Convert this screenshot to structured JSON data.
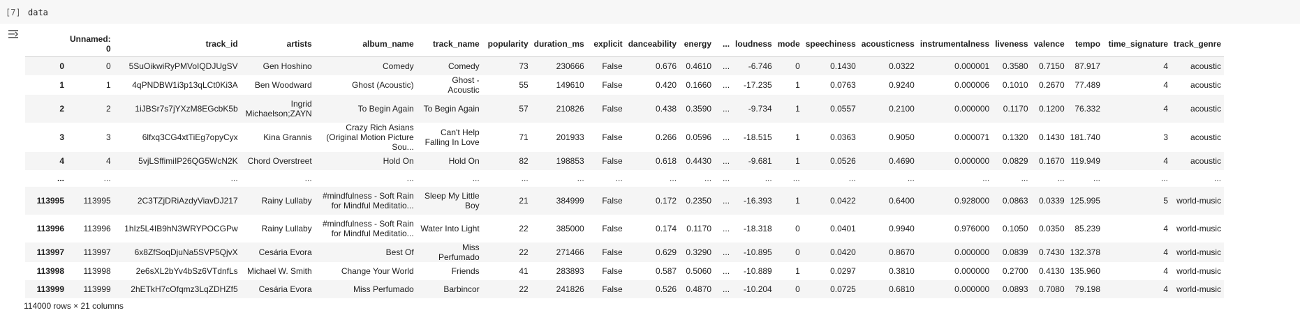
{
  "cell": {
    "execution_count": "[7]",
    "code": "data"
  },
  "table": {
    "columns": [
      "",
      "Unnamed: 0",
      "track_id",
      "artists",
      "album_name",
      "track_name",
      "popularity",
      "duration_ms",
      "explicit",
      "danceability",
      "energy",
      "...",
      "loudness",
      "mode",
      "speechiness",
      "acousticness",
      "instrumentalness",
      "liveness",
      "valence",
      "tempo",
      "time_signature",
      "track_genre"
    ],
    "rows": [
      [
        "0",
        "0",
        "5SuOikwiRyPMVoIQDJUgSV",
        "Gen Hoshino",
        "Comedy",
        "Comedy",
        "73",
        "230666",
        "False",
        "0.676",
        "0.4610",
        "...",
        "-6.746",
        "0",
        "0.1430",
        "0.0322",
        "0.000001",
        "0.3580",
        "0.7150",
        "87.917",
        "4",
        "acoustic"
      ],
      [
        "1",
        "1",
        "4qPNDBW1i3p13qLCt0Ki3A",
        "Ben Woodward",
        "Ghost (Acoustic)",
        "Ghost - Acoustic",
        "55",
        "149610",
        "False",
        "0.420",
        "0.1660",
        "...",
        "-17.235",
        "1",
        "0.0763",
        "0.9240",
        "0.000006",
        "0.1010",
        "0.2670",
        "77.489",
        "4",
        "acoustic"
      ],
      [
        "2",
        "2",
        "1iJBSr7s7jYXzM8EGcbK5b",
        "Ingrid Michaelson;ZAYN",
        "To Begin Again",
        "To Begin Again",
        "57",
        "210826",
        "False",
        "0.438",
        "0.3590",
        "...",
        "-9.734",
        "1",
        "0.0557",
        "0.2100",
        "0.000000",
        "0.1170",
        "0.1200",
        "76.332",
        "4",
        "acoustic"
      ],
      [
        "3",
        "3",
        "6lfxq3CG4xtTiEg7opyCyx",
        "Kina Grannis",
        "Crazy Rich Asians (Original Motion Picture Sou...",
        "Can't Help Falling In Love",
        "71",
        "201933",
        "False",
        "0.266",
        "0.0596",
        "...",
        "-18.515",
        "1",
        "0.0363",
        "0.9050",
        "0.000071",
        "0.1320",
        "0.1430",
        "181.740",
        "3",
        "acoustic"
      ],
      [
        "4",
        "4",
        "5vjLSffimiIP26QG5WcN2K",
        "Chord Overstreet",
        "Hold On",
        "Hold On",
        "82",
        "198853",
        "False",
        "0.618",
        "0.4430",
        "...",
        "-9.681",
        "1",
        "0.0526",
        "0.4690",
        "0.000000",
        "0.0829",
        "0.1670",
        "119.949",
        "4",
        "acoustic"
      ],
      [
        "...",
        "...",
        "...",
        "...",
        "...",
        "...",
        "...",
        "...",
        "...",
        "...",
        "...",
        "...",
        "...",
        "...",
        "...",
        "...",
        "...",
        "...",
        "...",
        "...",
        "...",
        "..."
      ],
      [
        "113995",
        "113995",
        "2C3TZjDRiAzdyViavDJ217",
        "Rainy Lullaby",
        "#mindfulness - Soft Rain for Mindful Meditatio...",
        "Sleep My Little Boy",
        "21",
        "384999",
        "False",
        "0.172",
        "0.2350",
        "...",
        "-16.393",
        "1",
        "0.0422",
        "0.6400",
        "0.928000",
        "0.0863",
        "0.0339",
        "125.995",
        "5",
        "world-music"
      ],
      [
        "113996",
        "113996",
        "1hIz5L4IB9hN3WRYPOCGPw",
        "Rainy Lullaby",
        "#mindfulness - Soft Rain for Mindful Meditatio...",
        "Water Into Light",
        "22",
        "385000",
        "False",
        "0.174",
        "0.1170",
        "...",
        "-18.318",
        "0",
        "0.0401",
        "0.9940",
        "0.976000",
        "0.1050",
        "0.0350",
        "85.239",
        "4",
        "world-music"
      ],
      [
        "113997",
        "113997",
        "6x8ZfSoqDjuNa5SVP5QjvX",
        "Cesária Evora",
        "Best Of",
        "Miss Perfumado",
        "22",
        "271466",
        "False",
        "0.629",
        "0.3290",
        "...",
        "-10.895",
        "0",
        "0.0420",
        "0.8670",
        "0.000000",
        "0.0839",
        "0.7430",
        "132.378",
        "4",
        "world-music"
      ],
      [
        "113998",
        "113998",
        "2e6sXL2bYv4bSz6VTdnfLs",
        "Michael W. Smith",
        "Change Your World",
        "Friends",
        "41",
        "283893",
        "False",
        "0.587",
        "0.5060",
        "...",
        "-10.889",
        "1",
        "0.0297",
        "0.3810",
        "0.000000",
        "0.2700",
        "0.4130",
        "135.960",
        "4",
        "world-music"
      ],
      [
        "113999",
        "113999",
        "2hETkH7cOfqmz3LqZDHZf5",
        "Cesária Evora",
        "Miss Perfumado",
        "Barbincor",
        "22",
        "241826",
        "False",
        "0.526",
        "0.4870",
        "...",
        "-10.204",
        "0",
        "0.0725",
        "0.6810",
        "0.000000",
        "0.0893",
        "0.7080",
        "79.198",
        "4",
        "world-music"
      ]
    ],
    "tall_rows": [
      2,
      3,
      6,
      7
    ],
    "footer": "114000 rows × 21 columns"
  },
  "icons": {
    "output_toggle": "output-options-icon"
  }
}
